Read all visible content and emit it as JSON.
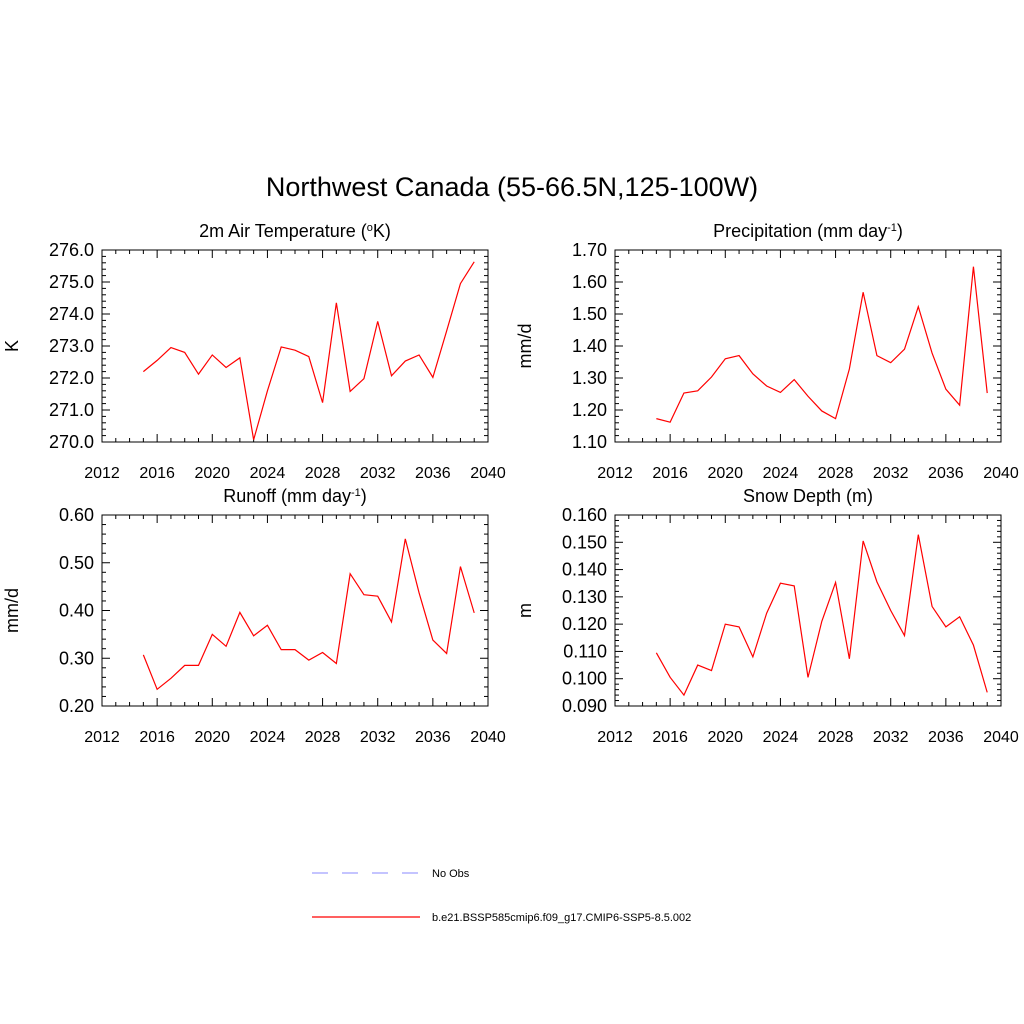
{
  "title": "Northwest Canada (55-66.5N,125-100W)",
  "legend": {
    "placement": "bottom-center",
    "entries": [
      {
        "label": "No Obs",
        "color": "#a0a0ff",
        "dash": true
      },
      {
        "label": "b.e21.BSSP585cmip6.f09_g17.CMIP6-SSP5-8.5.002",
        "color": "#ff0000",
        "dash": false
      }
    ]
  },
  "chart_data": [
    {
      "type": "line",
      "title_main": "2m Air Temperature (",
      "title_sup_pre": "o",
      "title_mid": "K)",
      "title_sup_post": "",
      "title_end": "",
      "ylabel": "K",
      "xlim": [
        2012,
        2040
      ],
      "xticks": [
        "2012",
        "2016",
        "2020",
        "2024",
        "2028",
        "2032",
        "2036",
        "2040"
      ],
      "ylim": [
        270.0,
        276.0
      ],
      "yticks": [
        "270.0",
        "271.0",
        "272.0",
        "273.0",
        "274.0",
        "275.0",
        "276.0"
      ],
      "grid": false,
      "series": [
        {
          "color": "#ff0000",
          "x": [
            2015,
            2016,
            2017,
            2018,
            2019,
            2020,
            2021,
            2022,
            2023,
            2024,
            2025,
            2026,
            2027,
            2028,
            2029,
            2030,
            2031,
            2032,
            2033,
            2034,
            2035,
            2036,
            2037,
            2038,
            2039
          ],
          "values": [
            272.2,
            272.55,
            272.95,
            272.8,
            272.12,
            272.72,
            272.33,
            272.63,
            270.07,
            271.6,
            272.97,
            272.87,
            272.67,
            271.23,
            274.35,
            271.58,
            271.98,
            273.77,
            272.07,
            272.53,
            272.72,
            272.02,
            273.47,
            274.95,
            275.63
          ]
        }
      ]
    },
    {
      "type": "line",
      "title_main": "Precipitation (mm day",
      "title_sup_pre": "",
      "title_mid": "",
      "title_sup_post": "-1",
      "title_end": ")",
      "ylabel": "mm/d",
      "xlim": [
        2012,
        2040
      ],
      "xticks": [
        "2012",
        "2016",
        "2020",
        "2024",
        "2028",
        "2032",
        "2036",
        "2040"
      ],
      "ylim": [
        1.1,
        1.7
      ],
      "yticks": [
        "1.10",
        "1.20",
        "1.30",
        "1.40",
        "1.50",
        "1.60",
        "1.70"
      ],
      "grid": false,
      "series": [
        {
          "color": "#ff0000",
          "x": [
            2015,
            2016,
            2017,
            2018,
            2019,
            2020,
            2021,
            2022,
            2023,
            2024,
            2025,
            2026,
            2027,
            2028,
            2029,
            2030,
            2031,
            2032,
            2033,
            2034,
            2035,
            2036,
            2037,
            2038,
            2039
          ],
          "values": [
            1.173,
            1.162,
            1.253,
            1.26,
            1.303,
            1.36,
            1.37,
            1.313,
            1.275,
            1.255,
            1.295,
            1.243,
            1.197,
            1.173,
            1.328,
            1.568,
            1.37,
            1.348,
            1.39,
            1.523,
            1.378,
            1.265,
            1.215,
            1.648,
            1.253
          ]
        }
      ]
    },
    {
      "type": "line",
      "title_main": "Runoff (mm day",
      "title_sup_pre": "",
      "title_mid": "",
      "title_sup_post": "-1",
      "title_end": ")",
      "ylabel": "mm/d",
      "xlim": [
        2012,
        2040
      ],
      "xticks": [
        "2012",
        "2016",
        "2020",
        "2024",
        "2028",
        "2032",
        "2036",
        "2040"
      ],
      "ylim": [
        0.2,
        0.6
      ],
      "yticks": [
        "0.20",
        "0.30",
        "0.40",
        "0.50",
        "0.60"
      ],
      "grid": false,
      "series": [
        {
          "color": "#ff0000",
          "x": [
            2015,
            2016,
            2017,
            2018,
            2019,
            2020,
            2021,
            2022,
            2023,
            2024,
            2025,
            2026,
            2027,
            2028,
            2029,
            2030,
            2031,
            2032,
            2033,
            2034,
            2035,
            2036,
            2037,
            2038,
            2039
          ],
          "values": [
            0.307,
            0.235,
            0.258,
            0.285,
            0.285,
            0.35,
            0.325,
            0.396,
            0.347,
            0.369,
            0.318,
            0.318,
            0.296,
            0.312,
            0.289,
            0.477,
            0.433,
            0.43,
            0.376,
            0.55,
            0.437,
            0.338,
            0.31,
            0.492,
            0.395
          ]
        }
      ]
    },
    {
      "type": "line",
      "title_main": "Snow Depth (m)",
      "title_sup_pre": "",
      "title_mid": "",
      "title_sup_post": "",
      "title_end": "",
      "ylabel": "m",
      "xlim": [
        2012,
        2040
      ],
      "xticks": [
        "2012",
        "2016",
        "2020",
        "2024",
        "2028",
        "2032",
        "2036",
        "2040"
      ],
      "ylim": [
        0.09,
        0.16
      ],
      "yticks": [
        "0.090",
        "0.100",
        "0.110",
        "0.120",
        "0.130",
        "0.140",
        "0.150",
        "0.160"
      ],
      "grid": false,
      "series": [
        {
          "color": "#ff0000",
          "x": [
            2015,
            2016,
            2017,
            2018,
            2019,
            2020,
            2021,
            2022,
            2023,
            2024,
            2025,
            2026,
            2027,
            2028,
            2029,
            2030,
            2031,
            2032,
            2033,
            2034,
            2035,
            2036,
            2037,
            2038,
            2039
          ],
          "values": [
            0.1095,
            0.1005,
            0.094,
            0.105,
            0.103,
            0.12,
            0.119,
            0.108,
            0.124,
            0.135,
            0.134,
            0.1005,
            0.121,
            0.1353,
            0.1073,
            0.1505,
            0.1355,
            0.125,
            0.1158,
            0.1528,
            0.1265,
            0.119,
            0.1227,
            0.1123,
            0.095
          ]
        }
      ]
    }
  ]
}
